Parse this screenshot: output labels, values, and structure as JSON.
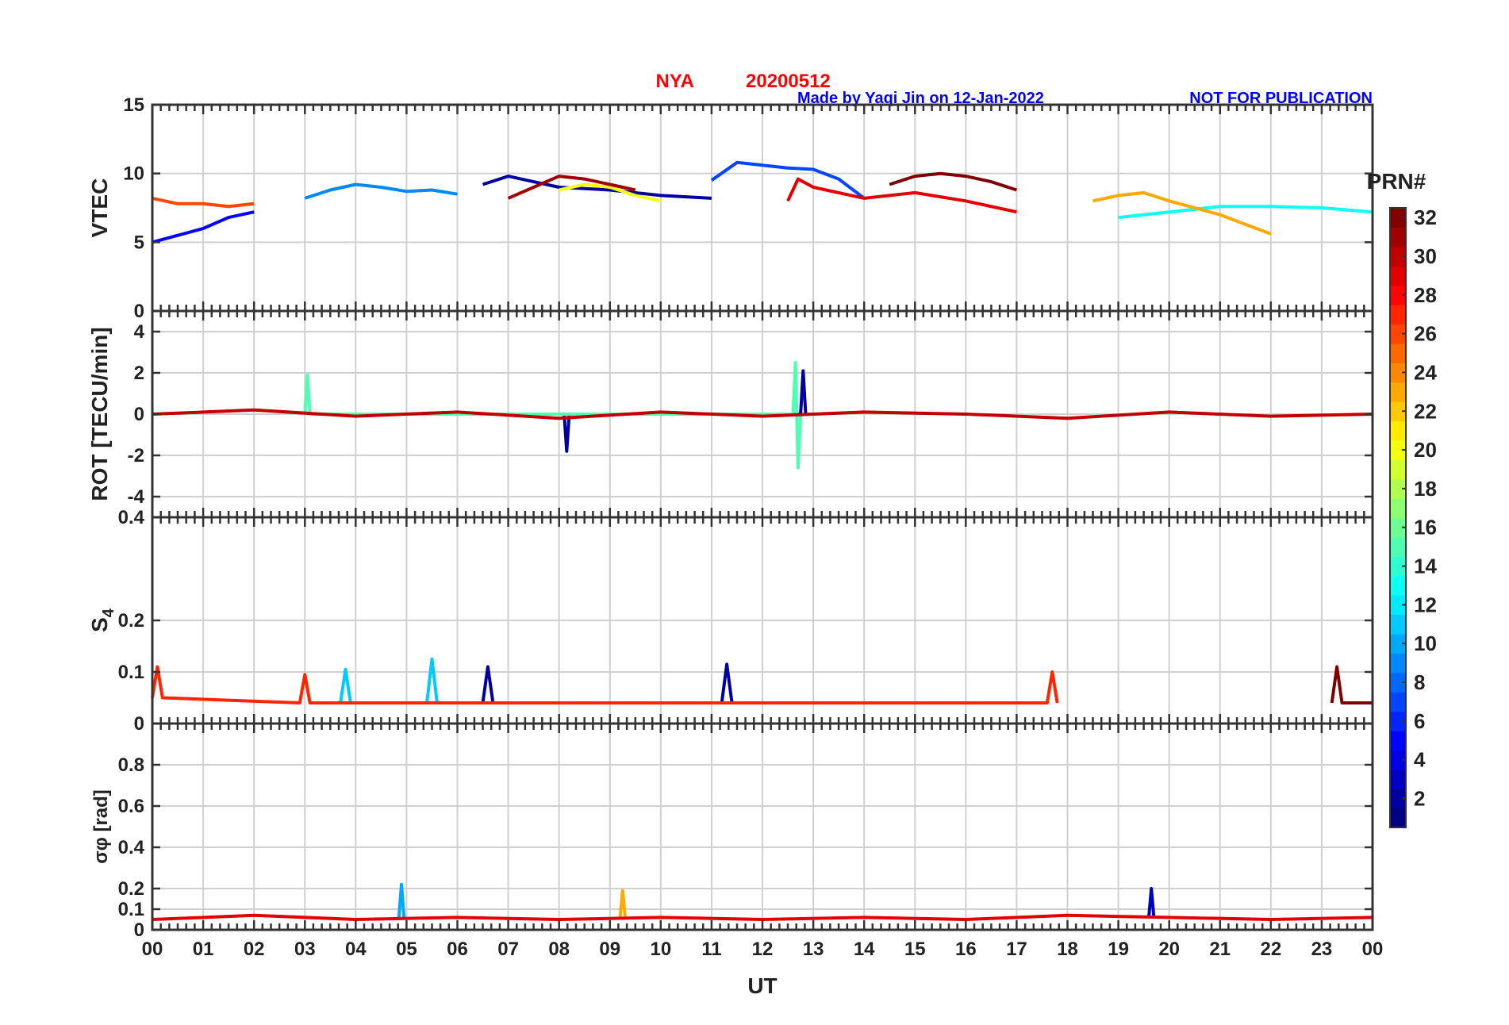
{
  "title": {
    "station": "NYA",
    "date": "20200512",
    "credit": "Made by Yaqi Jin on 12-Jan-2022",
    "notice": "NOT FOR PUBLICATION",
    "station_color": "#ff0000",
    "credit_color": "#0000ff"
  },
  "chart_data": [
    {
      "type": "line",
      "id": "vtec",
      "ylabel": "VTEC",
      "ylim": [
        0,
        15
      ],
      "yticks": [
        0,
        5,
        10,
        15
      ],
      "ytick_labels": [
        "0",
        "5",
        "10",
        "15"
      ],
      "grid": true,
      "series": [
        {
          "name": "PRN 2",
          "prn": 2,
          "x": [
            6.5,
            7.0,
            7.5,
            8.0,
            9.0,
            10.0,
            11.0
          ],
          "y": [
            9.2,
            9.8,
            9.4,
            9.0,
            8.8,
            8.4,
            8.2
          ]
        },
        {
          "name": "PRN 5",
          "prn": 5,
          "x": [
            0.0,
            0.5,
            1.0,
            1.5,
            2.0
          ],
          "y": [
            5.0,
            5.5,
            6.0,
            6.8,
            7.2
          ]
        },
        {
          "name": "PRN 7",
          "prn": 7,
          "x": [
            11.0,
            11.5,
            12.0,
            12.5,
            13.0,
            13.5,
            14.0
          ],
          "y": [
            9.5,
            10.8,
            10.6,
            10.4,
            10.3,
            9.6,
            8.2
          ]
        },
        {
          "name": "PRN 9",
          "prn": 9,
          "x": [
            3.0,
            3.5,
            4.0,
            4.5,
            5.0,
            5.5,
            6.0
          ],
          "y": [
            8.2,
            8.8,
            9.2,
            9.0,
            8.7,
            8.8,
            8.5
          ]
        },
        {
          "name": "PRN 13",
          "prn": 13,
          "x": [
            19.0,
            20.0,
            21.0,
            22.0,
            23.0,
            24.0
          ],
          "y": [
            6.8,
            7.2,
            7.6,
            7.6,
            7.5,
            7.2
          ]
        },
        {
          "name": "PRN 20",
          "prn": 20,
          "x": [
            8.0,
            8.5,
            9.0,
            9.5,
            10.0
          ],
          "y": [
            8.8,
            9.2,
            9.0,
            8.4,
            8.0
          ]
        },
        {
          "name": "PRN 23",
          "prn": 23,
          "x": [
            18.5,
            19.0,
            19.5,
            20.0,
            21.0,
            22.0
          ],
          "y": [
            8.0,
            8.4,
            8.6,
            8.0,
            7.0,
            5.6
          ]
        },
        {
          "name": "PRN 26",
          "prn": 26,
          "x": [
            0.0,
            0.5,
            1.0,
            1.5,
            2.0
          ],
          "y": [
            8.2,
            7.8,
            7.8,
            7.6,
            7.8
          ]
        },
        {
          "name": "PRN 29",
          "prn": 29,
          "x": [
            12.5,
            12.7,
            13.0,
            14.0,
            15.0,
            16.0,
            17.0
          ],
          "y": [
            8.0,
            9.6,
            9.0,
            8.2,
            8.6,
            8.0,
            7.2
          ]
        },
        {
          "name": "PRN 31",
          "prn": 31,
          "x": [
            7.0,
            7.5,
            8.0,
            8.5,
            9.0,
            9.5
          ],
          "y": [
            8.2,
            9.0,
            9.8,
            9.6,
            9.2,
            8.8
          ]
        },
        {
          "name": "PRN 32",
          "prn": 32,
          "x": [
            14.5,
            15.0,
            15.5,
            16.0,
            16.5,
            17.0
          ],
          "y": [
            9.2,
            9.8,
            10.0,
            9.8,
            9.4,
            8.8
          ]
        }
      ]
    },
    {
      "type": "line",
      "id": "rot",
      "ylabel": "ROT [TECU/min]",
      "ylim": [
        -5,
        5
      ],
      "yticks": [
        -4,
        -2,
        0,
        2,
        4
      ],
      "ytick_labels": [
        "-4",
        "-2",
        "0",
        "2",
        "4"
      ],
      "grid": true,
      "series": [
        {
          "name": "PRN 2",
          "prn": 2,
          "x": [
            8.1,
            8.15,
            8.2,
            12.75,
            12.8,
            12.85
          ],
          "y": [
            0,
            -1.8,
            0,
            0,
            2.1,
            0
          ]
        },
        {
          "name": "PRN 15",
          "prn": 15,
          "x": [
            3.0,
            3.05,
            3.1,
            12.6,
            12.65,
            12.7,
            12.75
          ],
          "y": [
            0,
            1.9,
            0,
            0,
            2.5,
            -2.6,
            0
          ]
        },
        {
          "name": "PRN 30",
          "prn": 30,
          "x": [
            0,
            2,
            4,
            6,
            8,
            10,
            12,
            14,
            16,
            18,
            20,
            22,
            24
          ],
          "y": [
            0,
            0.2,
            -0.1,
            0.1,
            -0.2,
            0.1,
            -0.1,
            0.1,
            0,
            -0.2,
            0.1,
            -0.1,
            0
          ]
        }
      ]
    },
    {
      "type": "line",
      "id": "s4",
      "ylabel": "S4",
      "ylim": [
        0,
        0.4
      ],
      "yticks": [
        0,
        0.1,
        0.2,
        0.4
      ],
      "ytick_labels": [
        "0",
        "0.1",
        "0.2",
        "0.4"
      ],
      "grid": true,
      "series": [
        {
          "name": "PRN 2",
          "prn": 2,
          "x": [
            6.5,
            6.6,
            6.7,
            11.2,
            11.3,
            11.4
          ],
          "y": [
            0.04,
            0.11,
            0.04,
            0.04,
            0.115,
            0.04
          ]
        },
        {
          "name": "PRN 11",
          "prn": 11,
          "x": [
            3.7,
            3.8,
            3.9,
            5.4,
            5.5,
            5.6
          ],
          "y": [
            0.04,
            0.105,
            0.04,
            0.04,
            0.125,
            0.04
          ]
        },
        {
          "name": "PRN 27",
          "prn": 27,
          "x": [
            0,
            0.1,
            0.2,
            2.9,
            3.0,
            3.1,
            17.6,
            17.7,
            17.8
          ],
          "y": [
            0.05,
            0.11,
            0.05,
            0.04,
            0.095,
            0.04,
            0.04,
            0.1,
            0.04
          ]
        },
        {
          "name": "PRN 32",
          "prn": 32,
          "x": [
            23.2,
            23.3,
            23.4,
            24.0
          ],
          "y": [
            0.04,
            0.11,
            0.04,
            0.04
          ]
        }
      ]
    },
    {
      "type": "line",
      "id": "sigma",
      "ylabel": "σφ [rad]",
      "ylim": [
        0,
        1
      ],
      "yticks": [
        0,
        0.1,
        0.2,
        0.4,
        0.6,
        0.8
      ],
      "ytick_labels": [
        "0",
        "0.1",
        "0.2",
        "0.4",
        "0.6",
        "0.8"
      ],
      "grid": true,
      "series": [
        {
          "name": "PRN 3",
          "prn": 3,
          "x": [
            19.6,
            19.65,
            19.7
          ],
          "y": [
            0.06,
            0.2,
            0.06
          ]
        },
        {
          "name": "PRN 10",
          "prn": 10,
          "x": [
            4.85,
            4.9,
            4.95
          ],
          "y": [
            0.06,
            0.22,
            0.06
          ]
        },
        {
          "name": "PRN 23",
          "prn": 23,
          "x": [
            9.2,
            9.25,
            9.3
          ],
          "y": [
            0.06,
            0.19,
            0.06
          ]
        },
        {
          "name": "PRN 29",
          "prn": 29,
          "x": [
            0,
            2,
            4,
            6,
            8,
            10,
            12,
            14,
            16,
            18,
            20,
            22,
            24
          ],
          "y": [
            0.05,
            0.07,
            0.05,
            0.06,
            0.05,
            0.06,
            0.05,
            0.06,
            0.05,
            0.07,
            0.06,
            0.05,
            0.06
          ]
        }
      ]
    }
  ],
  "x_axis": {
    "label": "UT",
    "range": [
      0,
      24
    ],
    "tick_labels": [
      "00",
      "01",
      "02",
      "03",
      "04",
      "05",
      "06",
      "07",
      "08",
      "09",
      "10",
      "11",
      "12",
      "13",
      "14",
      "15",
      "16",
      "17",
      "18",
      "19",
      "20",
      "21",
      "22",
      "23",
      "00"
    ]
  },
  "colorbar": {
    "title": "PRN#",
    "range": [
      1,
      32
    ],
    "ticks": [
      2,
      4,
      6,
      8,
      10,
      12,
      14,
      16,
      18,
      20,
      22,
      24,
      26,
      28,
      30,
      32
    ],
    "tick_labels": [
      "2",
      "4",
      "6",
      "8",
      "10",
      "12",
      "14",
      "16",
      "18",
      "20",
      "22",
      "24",
      "26",
      "28",
      "30",
      "32"
    ],
    "colormap": "jet"
  }
}
